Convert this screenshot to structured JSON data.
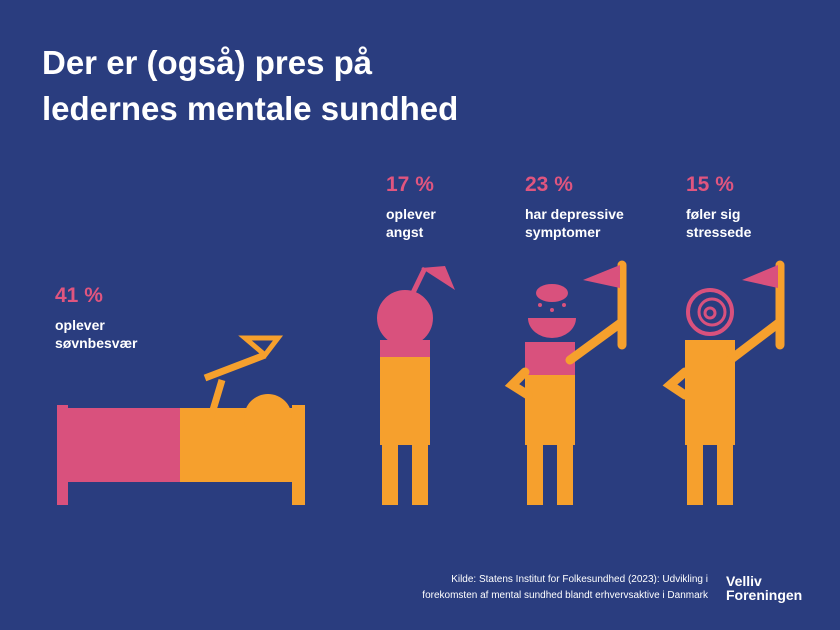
{
  "header": {
    "title_lines": [
      "Der er (også) pres på",
      "ledernes mentale sundhed"
    ]
  },
  "stats": [
    {
      "value": "41 %",
      "lines": [
        "oplever",
        "søvnbesvær"
      ]
    },
    {
      "value": "17 %",
      "lines": [
        "oplever",
        "angst"
      ]
    },
    {
      "value": "23 %",
      "lines": [
        "har depressive",
        "symptomer"
      ]
    },
    {
      "value": "15 %",
      "lines": [
        "føler sig",
        "stressede"
      ]
    }
  ],
  "source": {
    "lines": [
      "Kilde: Statens Institut for Folkesundhed (2023): Udvikling i",
      "forekomsten af mental sundhed blandt erhvervsaktive i Danmark"
    ]
  },
  "logo": {
    "lines": [
      "Velliv",
      "Foreningen"
    ]
  }
}
